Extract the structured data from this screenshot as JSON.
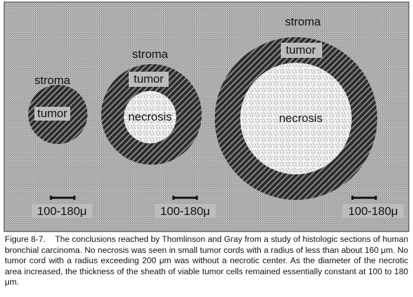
{
  "labels": {
    "stroma": "stroma",
    "tumor": "tumor",
    "necrosis": "necrosis"
  },
  "scale_bars": [
    {
      "label": "100-180μ"
    },
    {
      "label": "100-180μ"
    },
    {
      "label": "100-180μ"
    }
  ],
  "caption": {
    "figure_label": "Figure 8-7.",
    "text": "The conclusions reached by Thomlinson and Gray from a study of histologic sections of human bronchial carcinoma. No necrosis was seen in small tumor cords with a radius of less than about 160 μm. No tumor cord with a radius exceeding 200 μm was without a necrotic center. As the diameter of the necrotic area increased, the thickness of the sheath of viable tumor cells remained essentially constant at 100 to 180 μm."
  },
  "colors": {
    "stroma": "#b4b4b4",
    "tumor": "#2a2a2a",
    "necrosis": "#ececec",
    "ink": "#111111"
  }
}
